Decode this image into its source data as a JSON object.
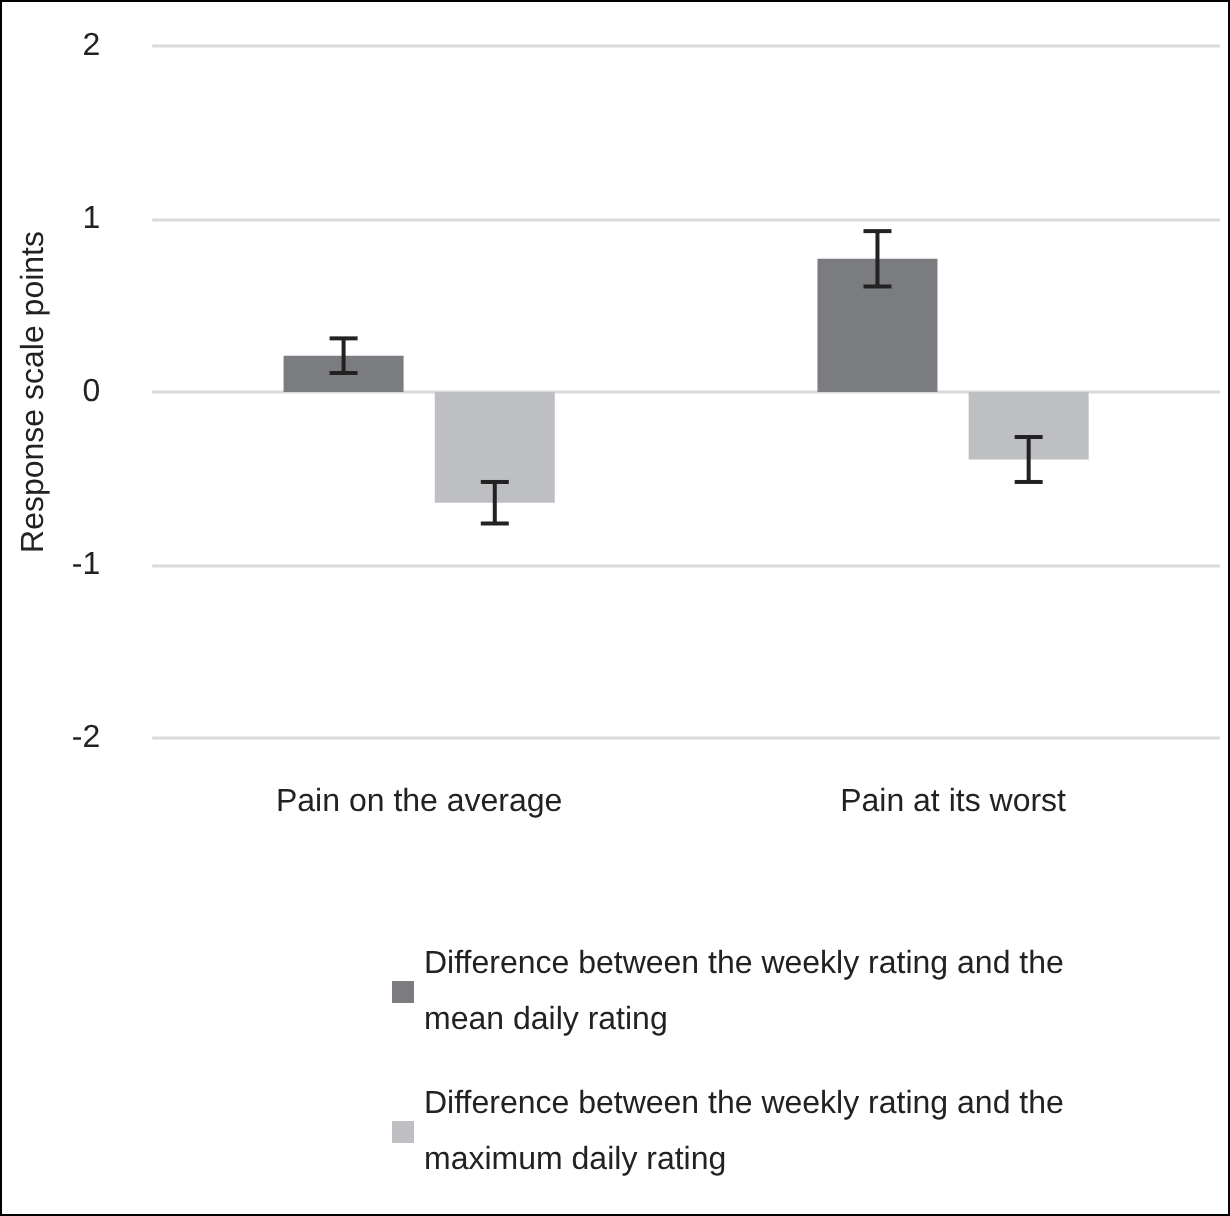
{
  "chart_data": {
    "type": "bar",
    "ylabel": "Response scale points",
    "categories": [
      "Pain on the average",
      "Pain at its worst"
    ],
    "series": [
      {
        "name": "Difference between the weekly rating and the mean daily rating",
        "color": "#7b7c80",
        "values": [
          0.21,
          0.77
        ],
        "errors": [
          0.1,
          0.16
        ]
      },
      {
        "name": "Difference between the weekly rating and the maximum daily rating",
        "color": "#bebfc3",
        "values": [
          -0.64,
          -0.39
        ],
        "errors": [
          0.12,
          0.13
        ]
      }
    ],
    "ylim": [
      -2,
      2
    ],
    "yticks": [
      -2,
      -1,
      0,
      1,
      2
    ],
    "grid": "y",
    "legend": "bottom"
  }
}
